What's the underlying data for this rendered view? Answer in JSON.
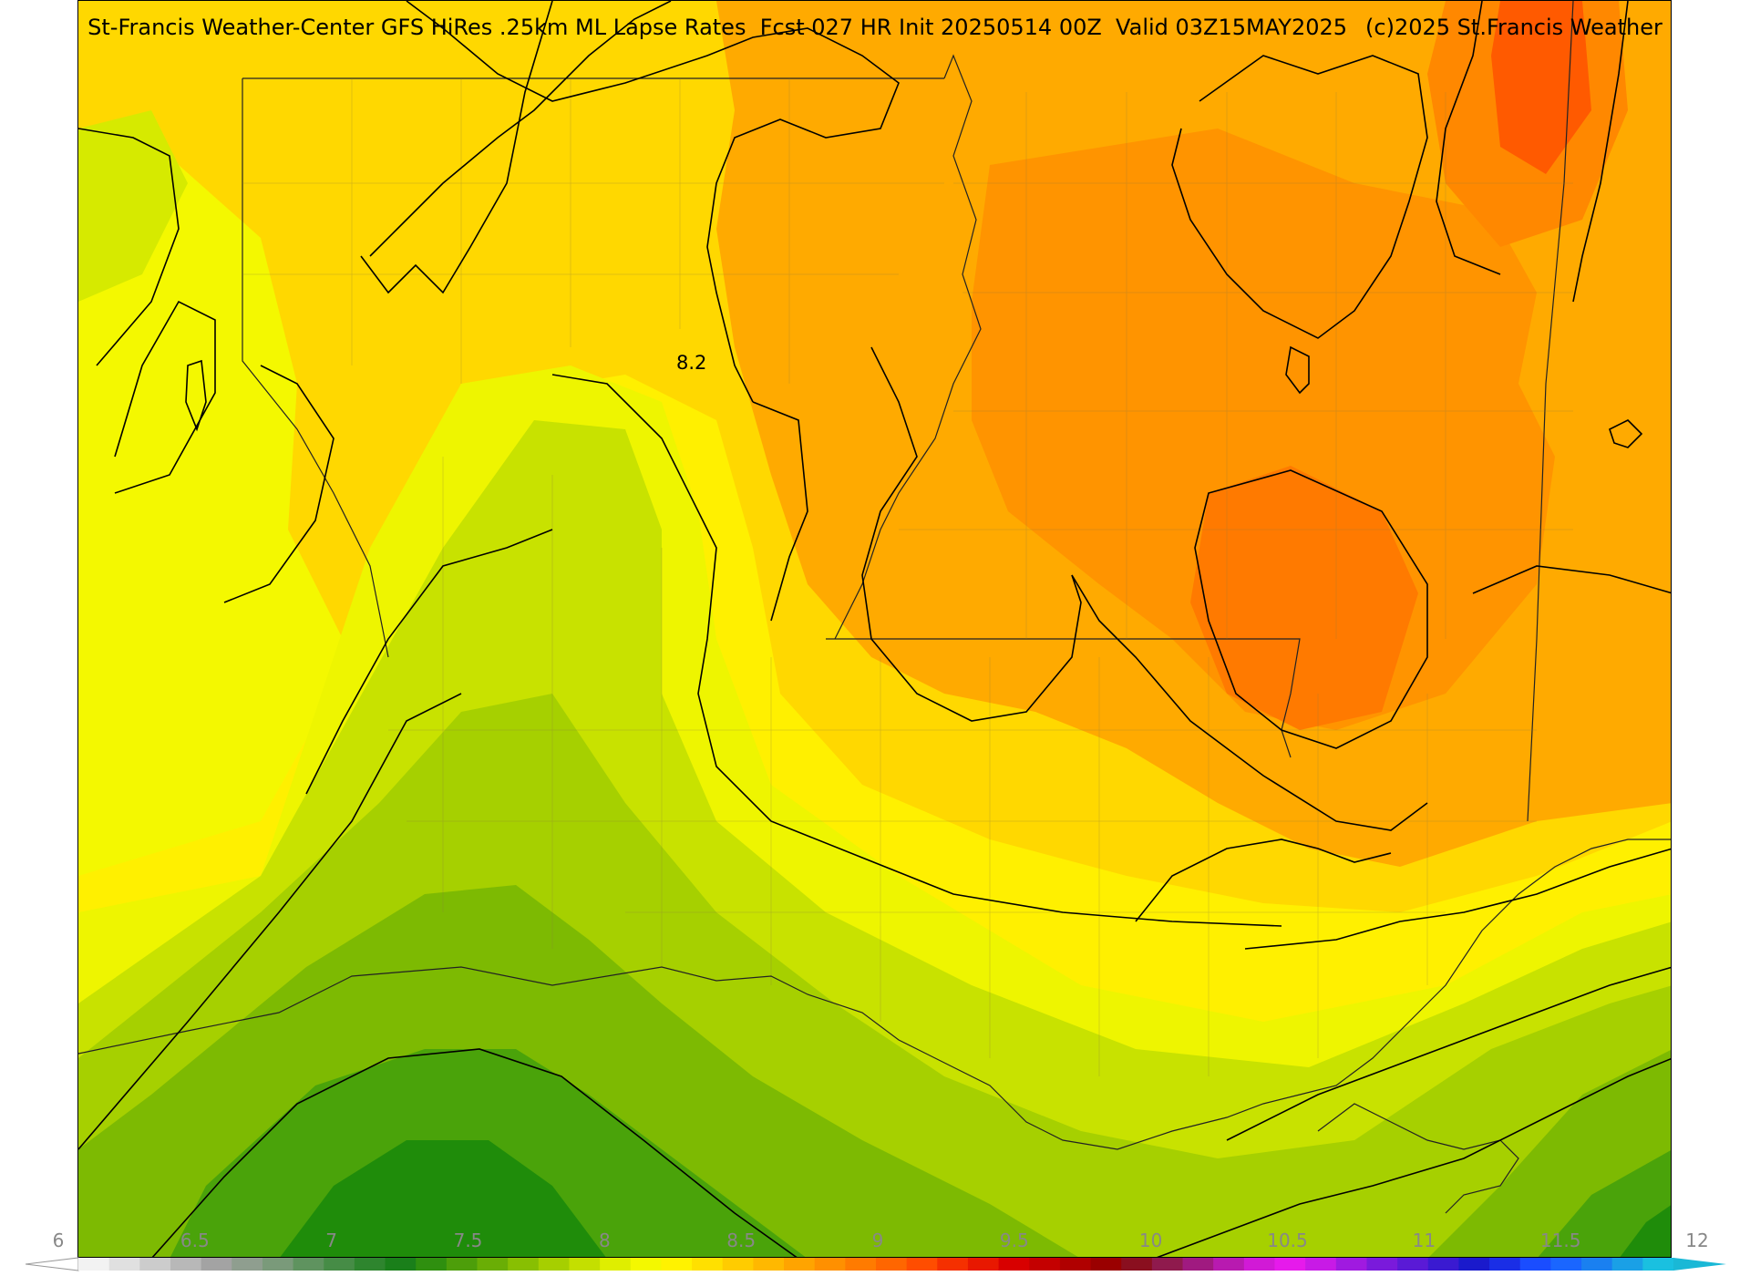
{
  "title": {
    "left": "St-Francis Weather-Center GFS HiRes .25km ML Lapse Rates  Fcst 027 HR Init 20250514 00Z  Valid 03Z15MAY2025",
    "right": "(c)2025 St.Francis Weather"
  },
  "contour_labels": [
    {
      "text": "8.2"
    }
  ],
  "colorbar": {
    "ticks": [
      "6",
      "6.5",
      "7",
      "7.5",
      "8",
      "8.5",
      "9",
      "9.5",
      "10",
      "10.5",
      "11",
      "11.5",
      "12"
    ],
    "colors": [
      "#f2f2f2",
      "#e0e0e0",
      "#cccccc",
      "#b8b8b8",
      "#a3a3a3",
      "#8f9e8f",
      "#7a9a7a",
      "#5f935f",
      "#468c46",
      "#2e852e",
      "#1a7f1a",
      "#2f8f0f",
      "#4d9e0a",
      "#6aae05",
      "#88bf02",
      "#a6cf00",
      "#c4df00",
      "#dfee00",
      "#f4f800",
      "#fff200",
      "#ffe000",
      "#ffcc00",
      "#ffb800",
      "#ffa400",
      "#ff9000",
      "#ff7b00",
      "#ff6600",
      "#ff4d00",
      "#f53000",
      "#e81800",
      "#d80000",
      "#c40000",
      "#b00000",
      "#9a0000",
      "#8a0f1f",
      "#8f1a4d",
      "#a01a80",
      "#b81ab0",
      "#d11ad6",
      "#e61aeb",
      "#c81ae6",
      "#a01ae0",
      "#7a1adb",
      "#5a1ad6",
      "#3a1ad1",
      "#1a1acc",
      "#1a2ee6",
      "#1a4dff",
      "#1a66ff",
      "#1a80f0",
      "#1aa0e6",
      "#1ac0e0"
    ],
    "under_color": "#ffffff",
    "over_color": "#1ab8d6"
  },
  "field_colors": {
    "dark_green": "#1f8c0a",
    "green": "#4aa30a",
    "mid_green": "#7dba02",
    "light_green": "#a6d000",
    "yellow_green": "#c8e200",
    "yellow": "#eef500",
    "bright_yellow": "#fff000",
    "gold": "#ffd800",
    "amber": "#ffc200",
    "orange_light": "#ffaa00",
    "orange": "#ff9400",
    "dark_orange": "#ff6a00",
    "red_orange": "#ff5000"
  }
}
